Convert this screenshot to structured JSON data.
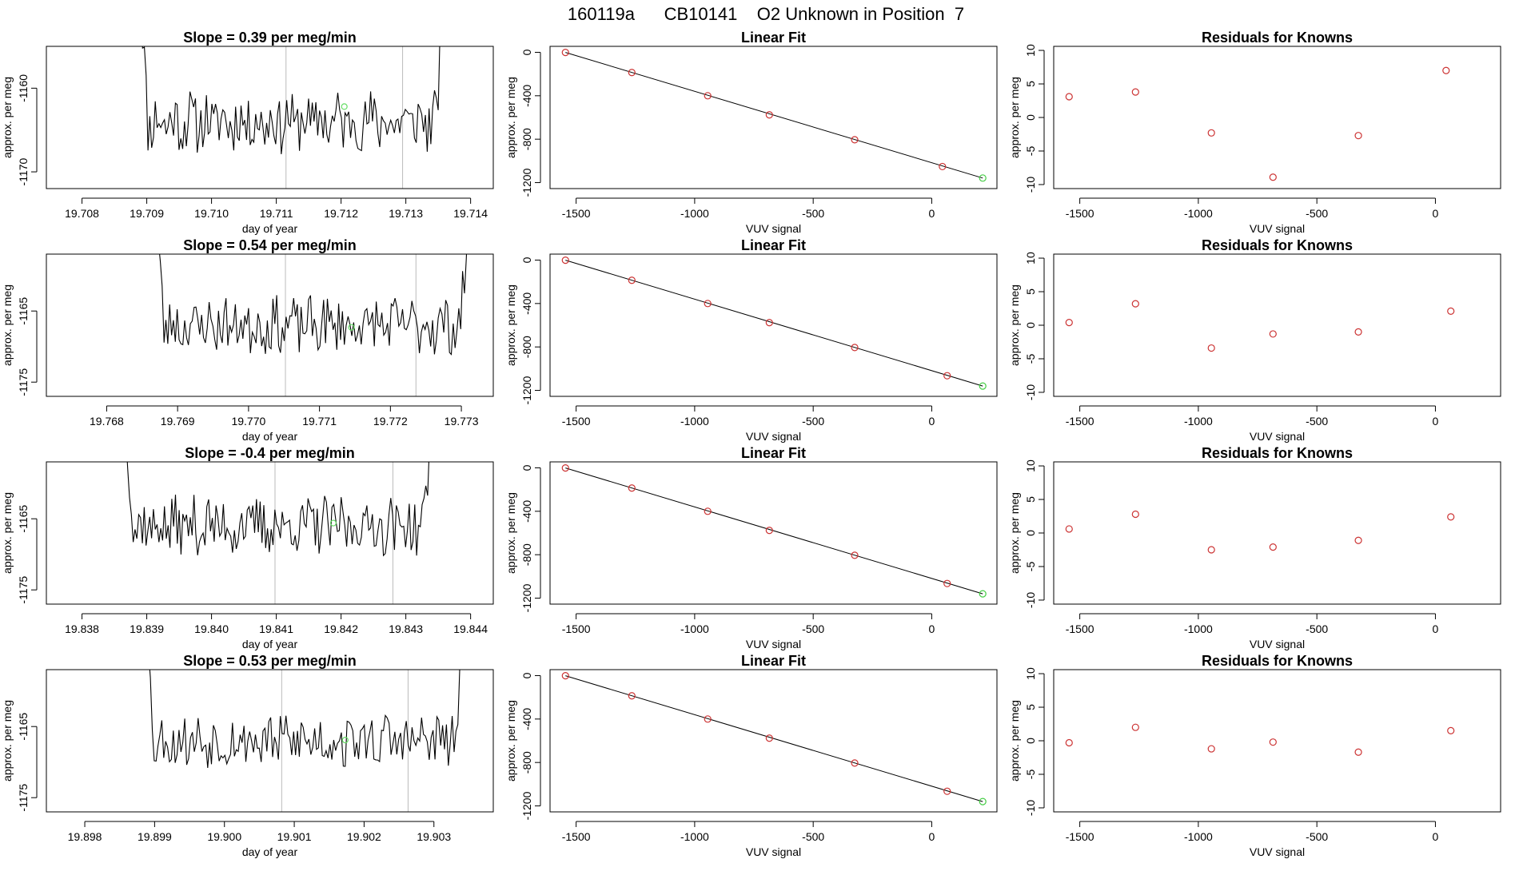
{
  "header": {
    "title": "160119a      CB10141    O2 Unknown in Position  7"
  },
  "chart_data": [
    {
      "type": "line",
      "panel": "trace",
      "row": 0,
      "title": "Slope =  0.39  per meg/min",
      "xlabel": "day of year",
      "ylabel": "approx. per meg",
      "xlim": [
        19.70745,
        19.71435
      ],
      "ylim": [
        -1172,
        -1155
      ],
      "xticks": [
        19.708,
        19.709,
        19.71,
        19.711,
        19.712,
        19.713,
        19.714
      ],
      "xtick_labels": [
        "19.708",
        "19.709",
        "19.710",
        "19.711",
        "19.712",
        "19.713",
        "19.714"
      ],
      "yticks": [
        -1170,
        -1160
      ],
      "ytick_labels": [
        "-1170",
        "-1160"
      ],
      "x_start": 19.70885,
      "x_end": 19.71364,
      "y_base": -1164,
      "y_amp": 3.3,
      "seed": 11,
      "vlines": [
        19.71115,
        19.71295
      ],
      "marker": {
        "x": 19.71205,
        "y": -1162.2,
        "color": "#66dd66"
      }
    },
    {
      "type": "scatter",
      "panel": "fit",
      "row": 0,
      "title": "Linear Fit",
      "xlabel": "VUV signal",
      "ylabel": "approx. per meg",
      "xlim": [
        -1610,
        275
      ],
      "ylim": [
        -1255,
        55
      ],
      "xticks": [
        -1500,
        -1000,
        -500,
        0
      ],
      "xtick_labels": [
        "-1500",
        "-1000",
        "-500",
        "0"
      ],
      "yticks": [
        0,
        -400,
        -800,
        -1200
      ],
      "ytick_labels": [
        "0",
        "-400",
        "-800",
        "-1200"
      ],
      "line": [
        [
          -1545,
          -1
        ],
        [
          215,
          -1158
        ]
      ],
      "points": [
        [
          -1545,
          -1
        ],
        [
          -1265,
          -186
        ],
        [
          -945,
          -400
        ],
        [
          -685,
          -576
        ],
        [
          -325,
          -805
        ],
        [
          45,
          -1052
        ]
      ],
      "unknown": [
        215,
        -1158
      ],
      "point_color": "#cc3333",
      "unknown_color": "#44cc44"
    },
    {
      "type": "scatter",
      "panel": "residuals",
      "row": 0,
      "title": "Residuals for Knowns",
      "xlabel": "VUV signal",
      "ylabel": "approx. per meg",
      "xlim": [
        -1610,
        275
      ],
      "ylim": [
        -10.6,
        10.6
      ],
      "xticks": [
        -1500,
        -1000,
        -500,
        0
      ],
      "xtick_labels": [
        "-1500",
        "-1000",
        "-500",
        "0"
      ],
      "yticks": [
        10,
        5,
        0,
        -5,
        -10
      ],
      "ytick_labels": [
        "10",
        "5",
        "0",
        "-5",
        "-10"
      ],
      "points": [
        [
          -1545,
          3.1
        ],
        [
          -1265,
          3.8
        ],
        [
          -945,
          -2.3
        ],
        [
          -685,
          -8.9
        ],
        [
          -325,
          -2.7
        ],
        [
          45,
          7.0
        ]
      ],
      "point_color": "#cc3333"
    },
    {
      "type": "line",
      "panel": "trace",
      "row": 1,
      "title": "Slope =  0.54  per meg/min",
      "xlabel": "day of year",
      "ylabel": "approx. per meg",
      "xlim": [
        19.76715,
        19.77345
      ],
      "ylim": [
        -1177,
        -1157
      ],
      "xticks": [
        19.768,
        19.769,
        19.77,
        19.771,
        19.772,
        19.773
      ],
      "xtick_labels": [
        "19.768",
        "19.769",
        "19.770",
        "19.771",
        "19.772",
        "19.773"
      ],
      "yticks": [
        -1175,
        -1165
      ],
      "ytick_labels": [
        "-1175",
        "-1165"
      ],
      "x_start": 19.76865,
      "x_end": 19.77315,
      "y_base": -1167,
      "y_amp": 3.6,
      "seed": 23,
      "vlines": [
        19.77052,
        19.77236
      ],
      "marker": {
        "x": 19.77145,
        "y": -1167.3,
        "color": "#66dd66"
      }
    },
    {
      "type": "scatter",
      "panel": "fit",
      "row": 1,
      "title": "Linear Fit",
      "xlabel": "VUV signal",
      "ylabel": "approx. per meg",
      "xlim": [
        -1610,
        275
      ],
      "ylim": [
        -1255,
        55
      ],
      "xticks": [
        -1500,
        -1000,
        -500,
        0
      ],
      "xtick_labels": [
        "-1500",
        "-1000",
        "-500",
        "0"
      ],
      "yticks": [
        0,
        -400,
        -800,
        -1200
      ],
      "ytick_labels": [
        "0",
        "-400",
        "-800",
        "-1200"
      ],
      "line": [
        [
          -1545,
          -1
        ],
        [
          215,
          -1160
        ]
      ],
      "points": [
        [
          -1545,
          -1
        ],
        [
          -1265,
          -186
        ],
        [
          -945,
          -400
        ],
        [
          -685,
          -576
        ],
        [
          -325,
          -805
        ],
        [
          65,
          -1065
        ]
      ],
      "unknown": [
        215,
        -1160
      ],
      "point_color": "#cc3333",
      "unknown_color": "#44cc44"
    },
    {
      "type": "scatter",
      "panel": "residuals",
      "row": 1,
      "title": "Residuals for Knowns",
      "xlabel": "VUV signal",
      "ylabel": "approx. per meg",
      "xlim": [
        -1610,
        275
      ],
      "ylim": [
        -10.6,
        10.6
      ],
      "xticks": [
        -1500,
        -1000,
        -500,
        0
      ],
      "xtick_labels": [
        "-1500",
        "-1000",
        "-500",
        "0"
      ],
      "yticks": [
        10,
        5,
        0,
        -5,
        -10
      ],
      "ytick_labels": [
        "10",
        "5",
        "0",
        "-5",
        "-10"
      ],
      "points": [
        [
          -1545,
          0.4
        ],
        [
          -1265,
          3.2
        ],
        [
          -945,
          -3.4
        ],
        [
          -685,
          -1.3
        ],
        [
          -325,
          -1.0
        ],
        [
          65,
          2.1
        ]
      ],
      "point_color": "#cc3333"
    },
    {
      "type": "line",
      "panel": "trace",
      "row": 2,
      "title": "Slope =  -0.4  per meg/min",
      "xlabel": "day of year",
      "ylabel": "approx. per meg",
      "xlim": [
        19.83745,
        19.84435
      ],
      "ylim": [
        -1177,
        -1157
      ],
      "xticks": [
        19.838,
        19.839,
        19.84,
        19.841,
        19.842,
        19.843,
        19.844
      ],
      "xtick_labels": [
        "19.838",
        "19.839",
        "19.840",
        "19.841",
        "19.842",
        "19.843",
        "19.844"
      ],
      "yticks": [
        -1175,
        -1165
      ],
      "ytick_labels": [
        "-1175",
        "-1165"
      ],
      "x_start": 19.83862,
      "x_end": 19.84345,
      "y_base": -1166,
      "y_amp": 3.8,
      "seed": 37,
      "vlines": [
        19.84098,
        19.8428
      ],
      "marker": {
        "x": 19.84188,
        "y": -1165.6,
        "color": "#66dd66"
      }
    },
    {
      "type": "scatter",
      "panel": "fit",
      "row": 2,
      "title": "Linear Fit",
      "xlabel": "VUV signal",
      "ylabel": "approx. per meg",
      "xlim": [
        -1610,
        275
      ],
      "ylim": [
        -1255,
        55
      ],
      "xticks": [
        -1500,
        -1000,
        -500,
        0
      ],
      "xtick_labels": [
        "-1500",
        "-1000",
        "-500",
        "0"
      ],
      "yticks": [
        0,
        -400,
        -800,
        -1200
      ],
      "ytick_labels": [
        "0",
        "-400",
        "-800",
        "-1200"
      ],
      "line": [
        [
          -1545,
          -1
        ],
        [
          215,
          -1160
        ]
      ],
      "points": [
        [
          -1545,
          -1
        ],
        [
          -1265,
          -186
        ],
        [
          -945,
          -400
        ],
        [
          -685,
          -576
        ],
        [
          -325,
          -805
        ],
        [
          65,
          -1065
        ]
      ],
      "unknown": [
        215,
        -1160
      ],
      "point_color": "#cc3333",
      "unknown_color": "#44cc44"
    },
    {
      "type": "scatter",
      "panel": "residuals",
      "row": 2,
      "title": "Residuals for Knowns",
      "xlabel": "VUV signal",
      "ylabel": "approx. per meg",
      "xlim": [
        -1610,
        275
      ],
      "ylim": [
        -10.6,
        10.6
      ],
      "xticks": [
        -1500,
        -1000,
        -500,
        0
      ],
      "xtick_labels": [
        "-1500",
        "-1000",
        "-500",
        "0"
      ],
      "yticks": [
        10,
        5,
        0,
        -5,
        -10
      ],
      "ytick_labels": [
        "10",
        "5",
        "0",
        "-5",
        "-10"
      ],
      "points": [
        [
          -1545,
          0.6
        ],
        [
          -1265,
          2.8
        ],
        [
          -945,
          -2.5
        ],
        [
          -685,
          -2.1
        ],
        [
          -325,
          -1.1
        ],
        [
          65,
          2.4
        ]
      ],
      "point_color": "#cc3333"
    },
    {
      "type": "line",
      "panel": "trace",
      "row": 3,
      "title": "Slope =  0.53  per meg/min",
      "xlabel": "day of year",
      "ylabel": "approx. per meg",
      "xlim": [
        19.89745,
        19.90385
      ],
      "ylim": [
        -1177,
        -1157
      ],
      "xticks": [
        19.898,
        19.899,
        19.9,
        19.901,
        19.902,
        19.903
      ],
      "xtick_labels": [
        "19.898",
        "19.899",
        "19.900",
        "19.901",
        "19.902",
        "19.903"
      ],
      "yticks": [
        -1175,
        -1165
      ],
      "ytick_labels": [
        "-1175",
        "-1165"
      ],
      "x_start": 19.89883,
      "x_end": 19.90348,
      "y_base": -1167,
      "y_amp": 3.4,
      "seed": 53,
      "vlines": [
        19.90082,
        19.90263
      ],
      "marker": {
        "x": 19.90173,
        "y": -1166.9,
        "color": "#66dd66"
      }
    },
    {
      "type": "scatter",
      "panel": "fit",
      "row": 3,
      "title": "Linear Fit",
      "xlabel": "VUV signal",
      "ylabel": "approx. per meg",
      "xlim": [
        -1610,
        275
      ],
      "ylim": [
        -1255,
        55
      ],
      "xticks": [
        -1500,
        -1000,
        -500,
        0
      ],
      "xtick_labels": [
        "-1500",
        "-1000",
        "-500",
        "0"
      ],
      "yticks": [
        0,
        -400,
        -800,
        -1200
      ],
      "ytick_labels": [
        "0",
        "-400",
        "-800",
        "-1200"
      ],
      "line": [
        [
          -1545,
          -1
        ],
        [
          215,
          -1160
        ]
      ],
      "points": [
        [
          -1545,
          -1
        ],
        [
          -1265,
          -186
        ],
        [
          -945,
          -400
        ],
        [
          -685,
          -576
        ],
        [
          -325,
          -805
        ],
        [
          65,
          -1065
        ]
      ],
      "unknown": [
        215,
        -1160
      ],
      "point_color": "#cc3333",
      "unknown_color": "#44cc44"
    },
    {
      "type": "scatter",
      "panel": "residuals",
      "row": 3,
      "title": "Residuals for Knowns",
      "xlabel": "VUV signal",
      "ylabel": "approx. per meg",
      "xlim": [
        -1610,
        275
      ],
      "ylim": [
        -10.6,
        10.6
      ],
      "xticks": [
        -1500,
        -1000,
        -500,
        0
      ],
      "xtick_labels": [
        "-1500",
        "-1000",
        "-500",
        "0"
      ],
      "yticks": [
        10,
        5,
        0,
        -5,
        -10
      ],
      "ytick_labels": [
        "10",
        "5",
        "0",
        "-5",
        "-10"
      ],
      "points": [
        [
          -1545,
          -0.3
        ],
        [
          -1265,
          2.0
        ],
        [
          -945,
          -1.2
        ],
        [
          -685,
          -0.2
        ],
        [
          -325,
          -1.7
        ],
        [
          65,
          1.5
        ]
      ],
      "point_color": "#cc3333"
    }
  ]
}
